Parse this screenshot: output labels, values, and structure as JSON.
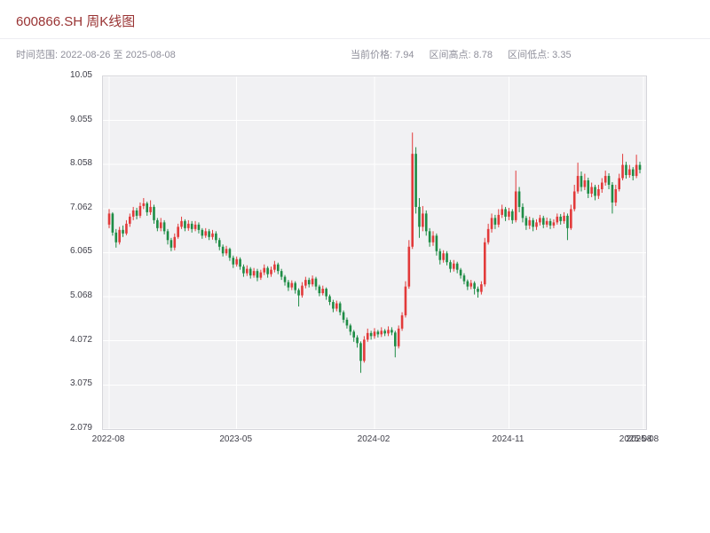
{
  "header": {
    "title": "600866.SH 周K线图",
    "time_range": "时间范围: 2022-08-26 至 2025-08-08"
  },
  "stats": [
    {
      "label": "当前价格:",
      "value": "7.94"
    },
    {
      "label": "区间高点:",
      "value": "8.78"
    },
    {
      "label": "区间低点:",
      "value": "3.35"
    }
  ],
  "chart_data": {
    "type": "candlestick",
    "title": "600866.SH 周K线图",
    "symbol": "600866.SH",
    "interval": "weekly",
    "date_start": "2022-08-26",
    "date_end": "2025-08-08",
    "current_price": 7.94,
    "range_high": 8.78,
    "range_low": 3.35,
    "xlabel": "",
    "ylabel": "",
    "grid": true,
    "ylim": [
      2.079,
      10.05
    ],
    "yticks": [
      10.05,
      9.055,
      8.058,
      7.062,
      6.065,
      5.068,
      4.072,
      3.075,
      2.079
    ],
    "xticks": [
      {
        "label": "2022-08",
        "week": 0,
        "grid": true
      },
      {
        "label": "2023-05",
        "week": 37,
        "grid": true
      },
      {
        "label": "2024-02",
        "week": 77,
        "grid": true
      },
      {
        "label": "2024-11",
        "week": 116,
        "grid": true
      },
      {
        "label": "2025-08",
        "week": 153,
        "grid": false
      },
      {
        "label": "2025-08",
        "week": 155,
        "grid": true
      }
    ],
    "colors": {
      "up": "#e23a3a",
      "down": "#1e8c45",
      "plot_bg": "#f1f1f3",
      "grid_line": "#ffffff"
    },
    "ohlc_format": [
      "open",
      "high",
      "low",
      "close"
    ],
    "candles": [
      [
        6.7,
        7.05,
        6.62,
        6.95
      ],
      [
        6.95,
        6.98,
        6.45,
        6.52
      ],
      [
        6.52,
        6.6,
        6.18,
        6.3
      ],
      [
        6.3,
        6.65,
        6.25,
        6.58
      ],
      [
        6.58,
        6.68,
        6.42,
        6.5
      ],
      [
        6.5,
        6.8,
        6.46,
        6.72
      ],
      [
        6.72,
        6.95,
        6.65,
        6.88
      ],
      [
        6.88,
        7.1,
        6.8,
        7.02
      ],
      [
        7.02,
        7.08,
        6.82,
        6.9
      ],
      [
        6.9,
        7.2,
        6.85,
        7.12
      ],
      [
        7.12,
        7.3,
        7.05,
        7.18
      ],
      [
        7.18,
        7.22,
        6.9,
        6.98
      ],
      [
        6.98,
        7.25,
        6.92,
        7.1
      ],
      [
        7.1,
        7.15,
        6.72,
        6.8
      ],
      [
        6.8,
        6.85,
        6.55,
        6.62
      ],
      [
        6.62,
        6.85,
        6.55,
        6.75
      ],
      [
        6.75,
        6.8,
        6.48,
        6.55
      ],
      [
        6.55,
        6.6,
        6.25,
        6.35
      ],
      [
        6.35,
        6.4,
        6.1,
        6.18
      ],
      [
        6.18,
        6.5,
        6.12,
        6.42
      ],
      [
        6.42,
        6.72,
        6.38,
        6.65
      ],
      [
        6.65,
        6.88,
        6.6,
        6.78
      ],
      [
        6.78,
        6.82,
        6.55,
        6.62
      ],
      [
        6.62,
        6.8,
        6.56,
        6.72
      ],
      [
        6.72,
        6.78,
        6.52,
        6.6
      ],
      [
        6.6,
        6.78,
        6.55,
        6.7
      ],
      [
        6.7,
        6.75,
        6.5,
        6.58
      ],
      [
        6.58,
        6.62,
        6.38,
        6.45
      ],
      [
        6.45,
        6.62,
        6.4,
        6.55
      ],
      [
        6.55,
        6.6,
        6.35,
        6.42
      ],
      [
        6.42,
        6.58,
        6.36,
        6.5
      ],
      [
        6.5,
        6.55,
        6.28,
        6.35
      ],
      [
        6.35,
        6.4,
        6.12,
        6.2
      ],
      [
        6.2,
        6.25,
        5.98,
        6.05
      ],
      [
        6.05,
        6.22,
        6.0,
        6.15
      ],
      [
        6.15,
        6.18,
        5.88,
        5.95
      ],
      [
        5.95,
        6.0,
        5.72,
        5.8
      ],
      [
        5.8,
        5.98,
        5.75,
        5.92
      ],
      [
        5.92,
        5.96,
        5.68,
        5.75
      ],
      [
        5.75,
        5.8,
        5.52,
        5.6
      ],
      [
        5.6,
        5.78,
        5.54,
        5.7
      ],
      [
        5.7,
        5.74,
        5.48,
        5.55
      ],
      [
        5.55,
        5.72,
        5.5,
        5.65
      ],
      [
        5.65,
        5.7,
        5.42,
        5.5
      ],
      [
        5.5,
        5.68,
        5.45,
        5.62
      ],
      [
        5.62,
        5.8,
        5.56,
        5.72
      ],
      [
        5.72,
        5.76,
        5.5,
        5.58
      ],
      [
        5.58,
        5.75,
        5.52,
        5.68
      ],
      [
        5.68,
        5.88,
        5.62,
        5.8
      ],
      [
        5.8,
        5.84,
        5.58,
        5.65
      ],
      [
        5.65,
        5.7,
        5.45,
        5.52
      ],
      [
        5.52,
        5.56,
        5.32,
        5.4
      ],
      [
        5.4,
        5.45,
        5.2,
        5.28
      ],
      [
        5.28,
        5.44,
        5.22,
        5.38
      ],
      [
        5.38,
        5.42,
        5.14,
        5.22
      ],
      [
        5.22,
        5.26,
        4.85,
        5.1
      ],
      [
        5.1,
        5.4,
        5.05,
        5.32
      ],
      [
        5.32,
        5.52,
        5.26,
        5.45
      ],
      [
        5.45,
        5.5,
        5.28,
        5.35
      ],
      [
        5.35,
        5.55,
        5.3,
        5.48
      ],
      [
        5.48,
        5.52,
        5.22,
        5.3
      ],
      [
        5.3,
        5.34,
        5.08,
        5.15
      ],
      [
        5.15,
        5.32,
        5.1,
        5.25
      ],
      [
        5.25,
        5.28,
        5.0,
        5.08
      ],
      [
        5.08,
        5.12,
        4.88,
        4.95
      ],
      [
        4.95,
        5.0,
        4.72,
        4.8
      ],
      [
        4.8,
        4.98,
        4.74,
        4.92
      ],
      [
        4.92,
        4.96,
        4.65,
        4.72
      ],
      [
        4.72,
        4.76,
        4.48,
        4.55
      ],
      [
        4.55,
        4.6,
        4.35,
        4.42
      ],
      [
        4.42,
        4.46,
        4.2,
        4.28
      ],
      [
        4.28,
        4.32,
        4.05,
        4.15
      ],
      [
        4.15,
        4.2,
        3.92,
        4.02
      ],
      [
        4.02,
        4.06,
        3.35,
        3.62
      ],
      [
        3.62,
        4.18,
        3.58,
        4.1
      ],
      [
        4.1,
        4.35,
        4.05,
        4.25
      ],
      [
        4.25,
        4.3,
        4.1,
        4.18
      ],
      [
        4.18,
        4.36,
        4.12,
        4.28
      ],
      [
        4.28,
        4.32,
        4.15,
        4.22
      ],
      [
        4.22,
        4.38,
        4.16,
        4.3
      ],
      [
        4.3,
        4.34,
        4.18,
        4.24
      ],
      [
        4.24,
        4.4,
        4.18,
        4.32
      ],
      [
        4.32,
        4.38,
        4.2,
        4.26
      ],
      [
        4.26,
        4.3,
        3.7,
        3.95
      ],
      [
        3.95,
        4.42,
        3.9,
        4.35
      ],
      [
        4.35,
        4.72,
        4.3,
        4.65
      ],
      [
        4.65,
        5.42,
        4.6,
        5.3
      ],
      [
        5.3,
        6.35,
        5.25,
        6.2
      ],
      [
        6.2,
        8.78,
        6.15,
        8.3
      ],
      [
        8.3,
        8.45,
        6.95,
        7.1
      ],
      [
        7.1,
        7.3,
        6.4,
        6.65
      ],
      [
        6.65,
        7.12,
        6.55,
        6.95
      ],
      [
        6.95,
        7.02,
        6.45,
        6.55
      ],
      [
        6.55,
        6.62,
        6.2,
        6.3
      ],
      [
        6.3,
        6.55,
        6.22,
        6.45
      ],
      [
        6.45,
        6.5,
        6.0,
        6.1
      ],
      [
        6.1,
        6.16,
        5.8,
        5.9
      ],
      [
        5.9,
        6.12,
        5.84,
        6.05
      ],
      [
        6.05,
        6.1,
        5.78,
        5.85
      ],
      [
        5.85,
        5.9,
        5.62,
        5.7
      ],
      [
        5.7,
        5.9,
        5.64,
        5.82
      ],
      [
        5.82,
        5.86,
        5.6,
        5.68
      ],
      [
        5.68,
        5.72,
        5.48,
        5.55
      ],
      [
        5.55,
        5.6,
        5.35,
        5.42
      ],
      [
        5.42,
        5.46,
        5.22,
        5.3
      ],
      [
        5.3,
        5.45,
        5.24,
        5.38
      ],
      [
        5.38,
        5.42,
        5.12,
        5.25
      ],
      [
        5.25,
        5.3,
        5.05,
        5.18
      ],
      [
        5.18,
        5.42,
        5.12,
        5.35
      ],
      [
        5.35,
        6.4,
        5.3,
        6.3
      ],
      [
        6.3,
        6.72,
        6.25,
        6.6
      ],
      [
        6.6,
        6.95,
        6.52,
        6.85
      ],
      [
        6.85,
        6.92,
        6.6,
        6.7
      ],
      [
        6.7,
        7.05,
        6.64,
        6.92
      ],
      [
        6.92,
        7.15,
        6.85,
        7.05
      ],
      [
        7.05,
        7.1,
        6.78,
        6.88
      ],
      [
        6.88,
        7.08,
        6.8,
        7.0
      ],
      [
        7.0,
        7.05,
        6.72,
        6.8
      ],
      [
        6.8,
        7.92,
        6.75,
        7.45
      ],
      [
        7.45,
        7.55,
        6.98,
        7.1
      ],
      [
        7.1,
        7.18,
        6.75,
        6.85
      ],
      [
        6.85,
        6.9,
        6.58,
        6.68
      ],
      [
        6.68,
        6.88,
        6.6,
        6.8
      ],
      [
        6.8,
        6.85,
        6.55,
        6.65
      ],
      [
        6.65,
        6.82,
        6.58,
        6.75
      ],
      [
        6.75,
        6.92,
        6.68,
        6.85
      ],
      [
        6.85,
        6.9,
        6.62,
        6.7
      ],
      [
        6.7,
        6.86,
        6.64,
        6.78
      ],
      [
        6.78,
        6.84,
        6.6,
        6.68
      ],
      [
        6.68,
        6.82,
        6.62,
        6.75
      ],
      [
        6.75,
        6.95,
        6.7,
        6.88
      ],
      [
        6.88,
        6.94,
        6.7,
        6.78
      ],
      [
        6.78,
        6.98,
        6.72,
        6.9
      ],
      [
        6.9,
        6.95,
        6.35,
        6.62
      ],
      [
        6.62,
        7.15,
        6.58,
        7.05
      ],
      [
        7.05,
        7.6,
        7.0,
        7.45
      ],
      [
        7.45,
        8.1,
        7.4,
        7.8
      ],
      [
        7.8,
        7.9,
        7.45,
        7.55
      ],
      [
        7.55,
        7.85,
        7.48,
        7.7
      ],
      [
        7.7,
        7.76,
        7.3,
        7.4
      ],
      [
        7.4,
        7.65,
        7.32,
        7.55
      ],
      [
        7.55,
        7.6,
        7.25,
        7.35
      ],
      [
        7.35,
        7.6,
        7.28,
        7.5
      ],
      [
        7.5,
        7.75,
        7.42,
        7.65
      ],
      [
        7.65,
        7.92,
        7.58,
        7.8
      ],
      [
        7.8,
        7.86,
        7.5,
        7.6
      ],
      [
        7.6,
        7.66,
        6.95,
        7.2
      ],
      [
        7.2,
        7.6,
        7.12,
        7.5
      ],
      [
        7.5,
        7.85,
        7.45,
        7.75
      ],
      [
        7.75,
        8.3,
        7.7,
        8.05
      ],
      [
        8.05,
        8.12,
        7.74,
        7.82
      ],
      [
        7.82,
        8.05,
        7.76,
        7.95
      ],
      [
        7.95,
        8.0,
        7.7,
        7.8
      ],
      [
        7.8,
        8.28,
        7.75,
        8.05
      ],
      [
        8.05,
        8.12,
        7.86,
        7.94
      ]
    ]
  }
}
